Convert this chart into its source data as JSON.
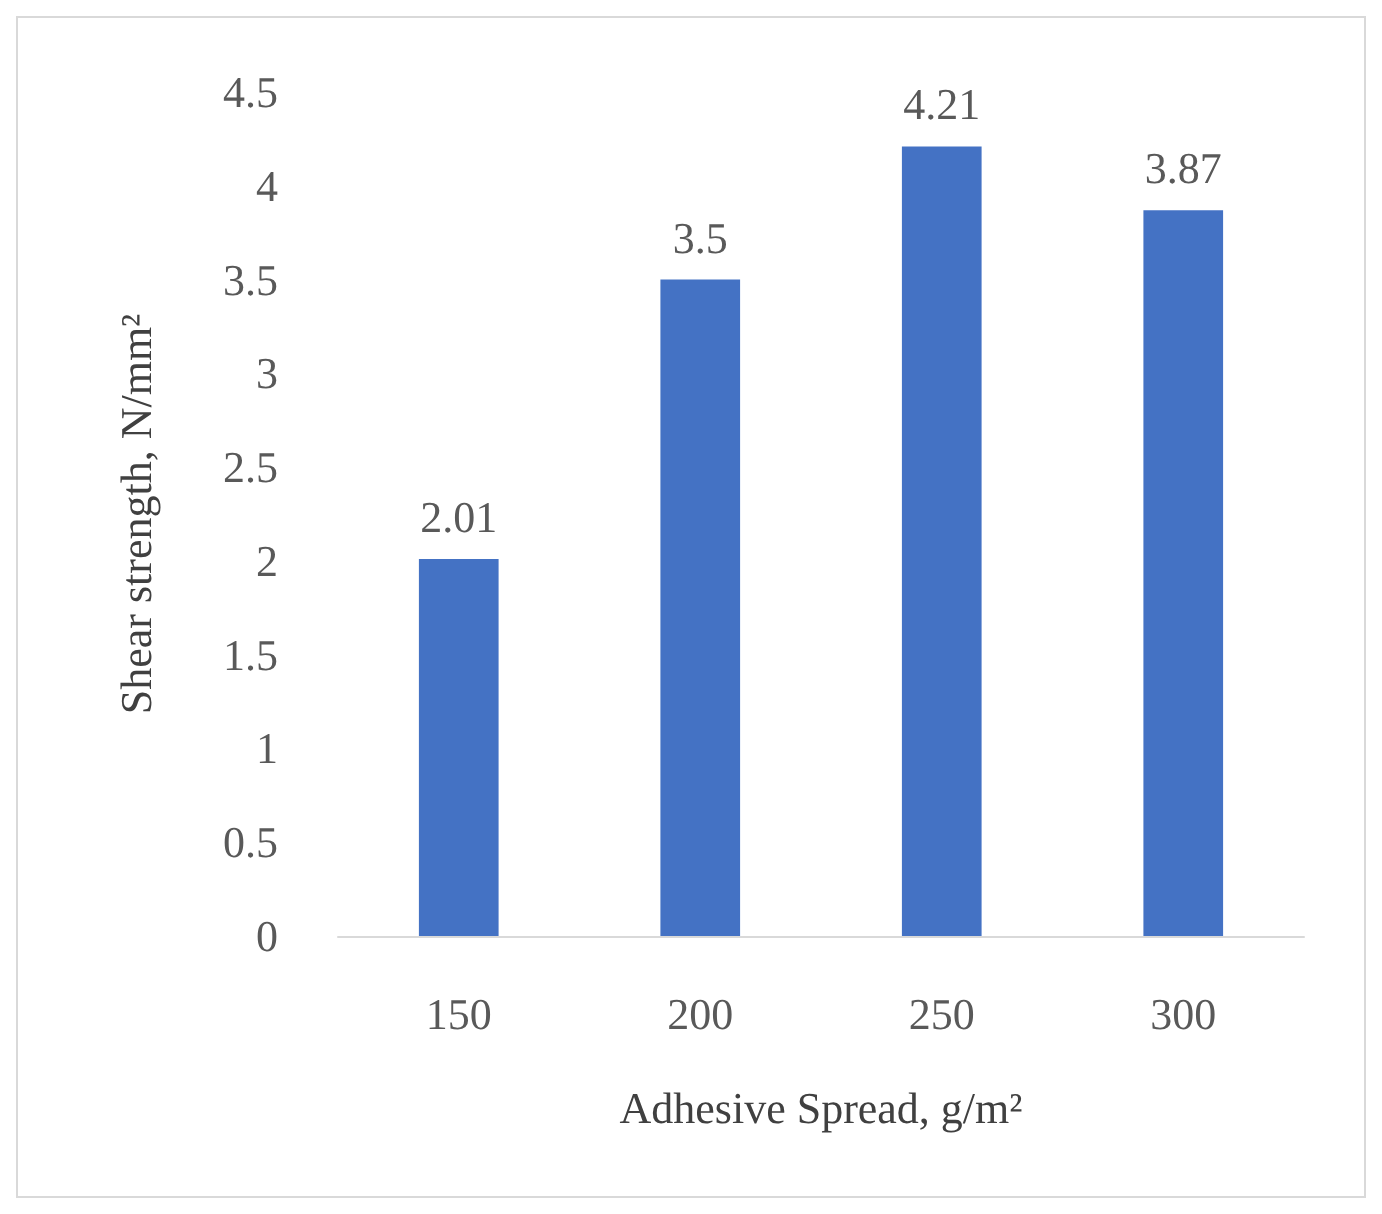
{
  "chart_data": {
    "type": "bar",
    "xlabel": "Adhesive Spread, g/m²",
    "ylabel": "Shear strength, N/mm²",
    "categories": [
      "150",
      "200",
      "250",
      "300"
    ],
    "values": [
      2.01,
      3.5,
      4.21,
      3.87
    ],
    "color": "#4472c4",
    "ylim": [
      0,
      4.5
    ],
    "yticks": [
      0,
      0.5,
      1,
      1.5,
      2,
      2.5,
      3,
      3.5,
      4,
      4.5
    ],
    "grid": false,
    "data_labels": true
  }
}
